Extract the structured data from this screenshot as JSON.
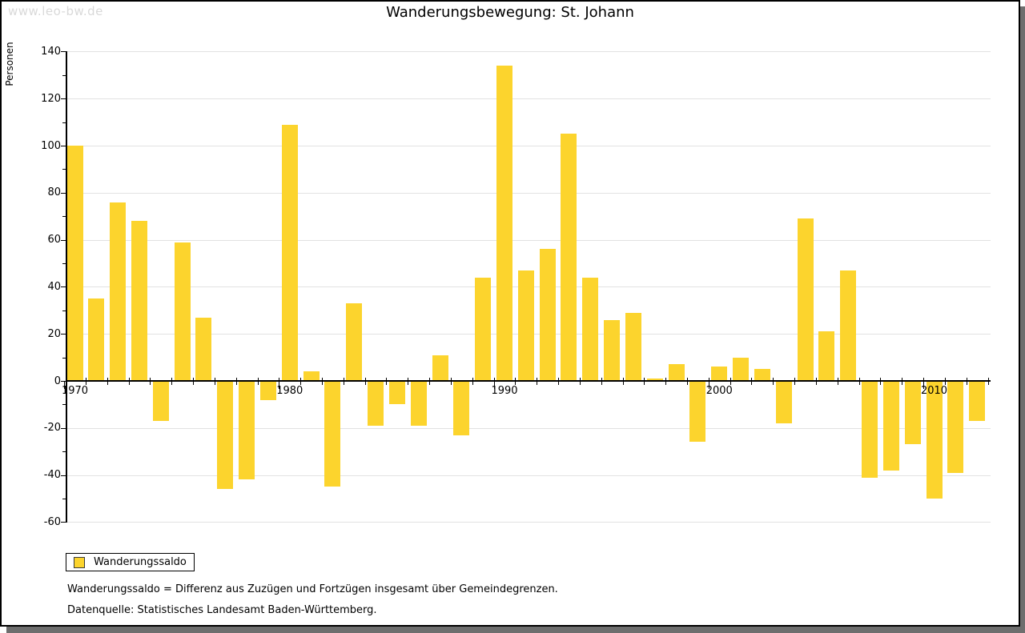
{
  "watermark": "www.leo-bw.de",
  "title": "Wanderungsbewegung: St. Johann",
  "chart_data": {
    "type": "bar",
    "title": "Wanderungsbewegung: St. Johann",
    "xlabel": "",
    "ylabel": "Personen",
    "ylim": [
      -60,
      140
    ],
    "ytick_step": 20,
    "ytick_minor_step": 10,
    "grid": true,
    "legend_position": "bottom-left",
    "series_name": "Wanderungssaldo",
    "bar_color": "#fcd42d",
    "grid_color": "#e2e2e2",
    "years": [
      1970,
      1971,
      1972,
      1973,
      1974,
      1975,
      1976,
      1977,
      1978,
      1979,
      1980,
      1981,
      1982,
      1983,
      1984,
      1985,
      1986,
      1987,
      1988,
      1989,
      1990,
      1991,
      1992,
      1993,
      1994,
      1995,
      1996,
      1997,
      1998,
      1999,
      2000,
      2001,
      2002,
      2003,
      2004,
      2005,
      2006,
      2007,
      2008,
      2009,
      2010,
      2011,
      2012
    ],
    "values": [
      100,
      35,
      76,
      68,
      -17,
      59,
      27,
      -46,
      -42,
      -8,
      109,
      4,
      -45,
      33,
      -19,
      -10,
      -19,
      11,
      -23,
      44,
      134,
      47,
      56,
      105,
      44,
      26,
      29,
      1,
      7,
      -26,
      6,
      10,
      5,
      -18,
      69,
      21,
      47,
      -41,
      -38,
      -27,
      -50,
      -39,
      -17
    ],
    "decade_tick_labels": [
      "1970",
      "1980",
      "1990",
      "2000",
      "2010"
    ]
  },
  "legend": {
    "label": "Wanderungssaldo"
  },
  "footnotes": [
    "Wanderungssaldo = Differenz aus Zuzügen und Fortzügen insgesamt über Gemeindegrenzen.",
    "Datenquelle: Statistisches Landesamt Baden-Württemberg."
  ]
}
